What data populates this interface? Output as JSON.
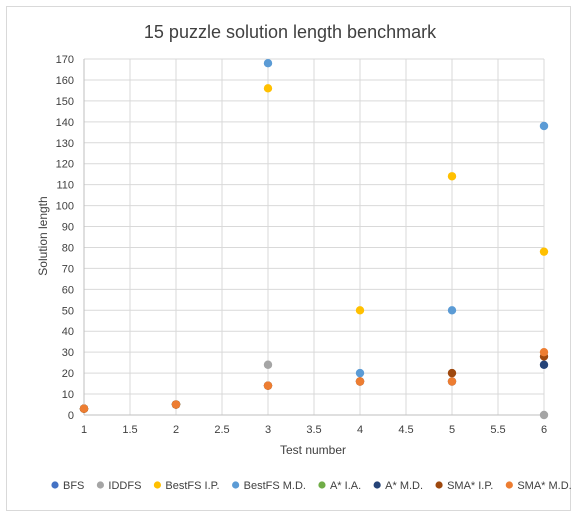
{
  "chart_data": {
    "type": "scatter",
    "title": "15 puzzle solution length benchmark",
    "xlabel": "Test number",
    "ylabel": "Solution length",
    "xlim": [
      1,
      6
    ],
    "ylim": [
      0,
      170
    ],
    "xticks": [
      "1",
      "1.5",
      "2",
      "2.5",
      "3",
      "3.5",
      "4",
      "4.5",
      "5",
      "5.5",
      "6"
    ],
    "yticks": [
      "0",
      "10",
      "20",
      "30",
      "40",
      "50",
      "60",
      "70",
      "80",
      "90",
      "100",
      "110",
      "120",
      "130",
      "140",
      "150",
      "160",
      "170"
    ],
    "grid": "vertical and horizontal",
    "legend_position": "bottom",
    "series": [
      {
        "name": "BFS",
        "color": "#4472c4",
        "points": [
          [
            1,
            3
          ],
          [
            2,
            5
          ]
        ]
      },
      {
        "name": "IDDFS",
        "color": "#a5a5a5",
        "points": [
          [
            1,
            3
          ],
          [
            2,
            5
          ],
          [
            3,
            24
          ],
          [
            6,
            0
          ]
        ]
      },
      {
        "name": "BestFS I.P.",
        "color": "#ffc000",
        "points": [
          [
            1,
            3
          ],
          [
            2,
            5
          ],
          [
            3,
            156
          ],
          [
            4,
            50
          ],
          [
            5,
            114
          ],
          [
            6,
            78
          ]
        ]
      },
      {
        "name": "BestFS M.D.",
        "color": "#5b9bd5",
        "points": [
          [
            1,
            3
          ],
          [
            2,
            5
          ],
          [
            3,
            168
          ],
          [
            4,
            20
          ],
          [
            5,
            50
          ],
          [
            6,
            138
          ]
        ]
      },
      {
        "name": "A* I.A.",
        "color": "#70ad47",
        "points": [
          [
            1,
            3
          ],
          [
            2,
            5
          ]
        ]
      },
      {
        "name": "A* M.D.",
        "color": "#264478",
        "points": [
          [
            1,
            3
          ],
          [
            2,
            5
          ],
          [
            3,
            14
          ],
          [
            4,
            16
          ],
          [
            5,
            16
          ],
          [
            6,
            24
          ]
        ]
      },
      {
        "name": "SMA* I.P.",
        "color": "#9e480e",
        "points": [
          [
            1,
            3
          ],
          [
            2,
            5
          ],
          [
            3,
            14
          ],
          [
            4,
            16
          ],
          [
            5,
            20
          ],
          [
            6,
            28
          ]
        ]
      },
      {
        "name": "SMA* M.D.",
        "color": "#ed7d31",
        "points": [
          [
            1,
            3
          ],
          [
            2,
            5
          ],
          [
            3,
            14
          ],
          [
            4,
            16
          ],
          [
            5,
            16
          ],
          [
            6,
            30
          ]
        ]
      }
    ]
  }
}
